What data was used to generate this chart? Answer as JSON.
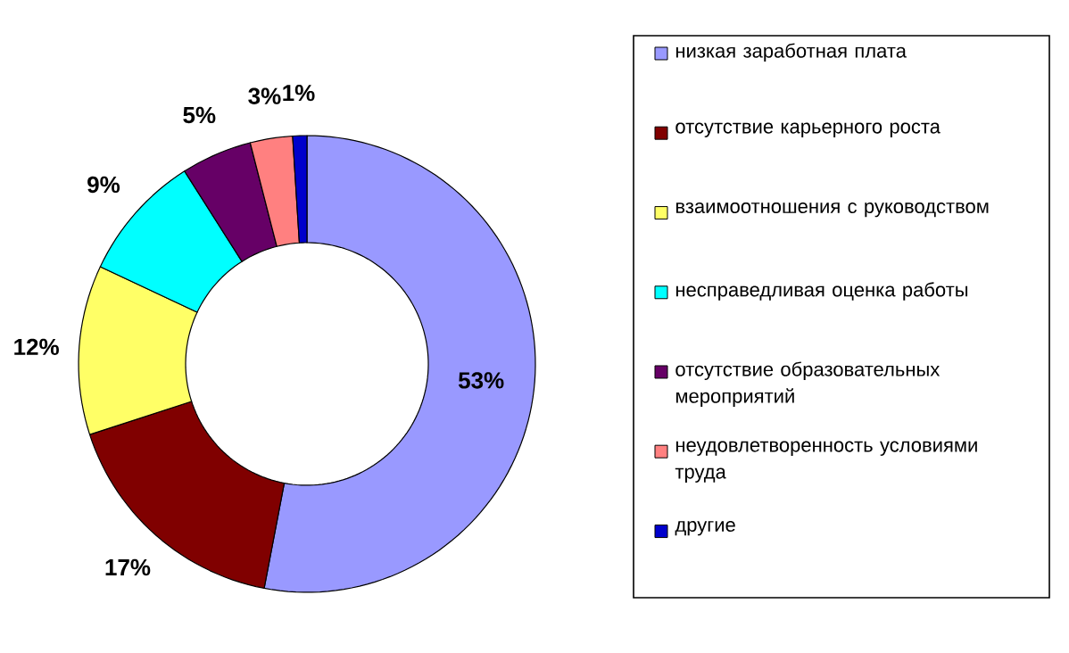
{
  "chart_data": {
    "type": "donut",
    "categories": [
      "низкая заработная плата",
      "отсутствие карьерного роста",
      "взаимоотношения с руководством",
      "несправедливая оценка работы",
      "отсутствие образовательных мероприятий",
      "неудовлетворенность условиями труда",
      "другие"
    ],
    "values": [
      53,
      17,
      12,
      9,
      5,
      3,
      1
    ],
    "colors": [
      "#9999ff",
      "#800000",
      "#ffff66",
      "#00ffff",
      "#660066",
      "#ff8080",
      "#0000cc"
    ],
    "value_labels": [
      "53%",
      "17%",
      "12%",
      "9%",
      "5%",
      "3%",
      "1%"
    ],
    "legend": "right"
  }
}
